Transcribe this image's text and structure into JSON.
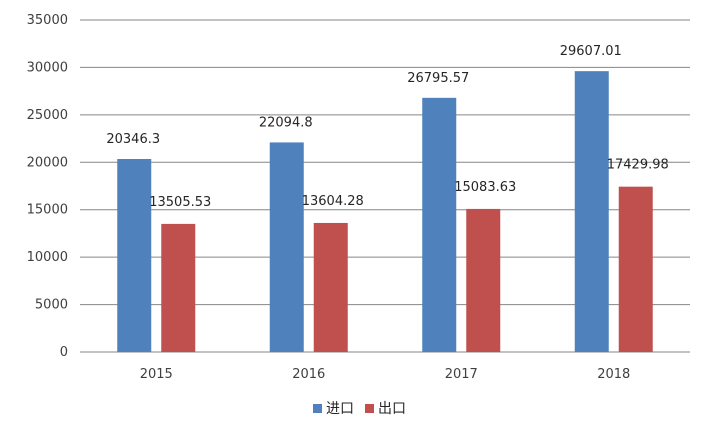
{
  "chart_data": {
    "type": "bar",
    "categories": [
      "2015",
      "2016",
      "2017",
      "2018"
    ],
    "series": [
      {
        "name": "进口",
        "color": "#4F81BD",
        "values": [
          20346.3,
          22094.8,
          26795.57,
          29607.01
        ]
      },
      {
        "name": "出口",
        "color": "#C0504D",
        "values": [
          13505.53,
          13604.28,
          15083.63,
          17429.98
        ]
      }
    ],
    "data_labels": [
      [
        "20346.3",
        "22094.8",
        "26795.57",
        "29607.01"
      ],
      [
        "13505.53",
        "13604.28",
        "15083.63",
        "17429.98"
      ]
    ],
    "yticks": [
      "0",
      "5000",
      "10000",
      "15000",
      "20000",
      "25000",
      "30000",
      "35000"
    ],
    "ylim": [
      0,
      35000
    ],
    "grid": true,
    "legend_position": "bottom",
    "grid_color": "#868686"
  }
}
